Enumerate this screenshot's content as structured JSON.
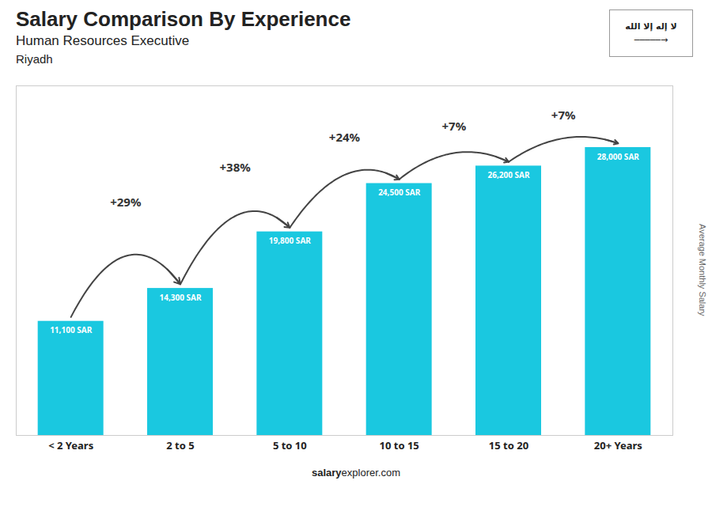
{
  "chart_data": {
    "type": "bar",
    "title": "Salary Comparison By Experience",
    "subtitle": "Human Resources Executive",
    "annotations": [
      "Riyadh",
      "لا إله إلا الله",
      "─────→",
      "salary",
      "explorer.com"
    ],
    "y_label": "Average Monthly Salary",
    "categories": [
      "< 2 Years",
      "2 to 5",
      "5 to 10",
      "10 to 15",
      "15 to 20",
      "20+ Years"
    ],
    "values": [
      11100,
      14300,
      19800,
      24500,
      26200,
      28000
    ],
    "value_labels": [
      "11,100 SAR",
      "14,300 SAR",
      "19,800 SAR",
      "24,500 SAR",
      "26,200 SAR",
      "28,000 SAR"
    ],
    "data_labels": true,
    "pct_changes": [
      null,
      "+29%",
      "+38%",
      "+24%",
      "+7%",
      "+7%"
    ],
    "color": "#1ac8e0",
    "ylim": [
      0,
      34000
    ],
    "tick_labels": "x"
  }
}
